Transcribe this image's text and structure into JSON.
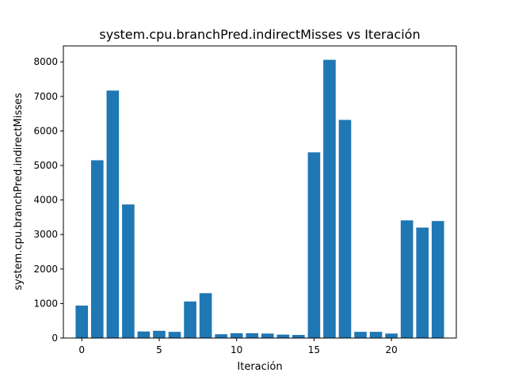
{
  "chart_data": {
    "type": "bar",
    "title": "system.cpu.branchPred.indirectMisses vs Iteración",
    "xlabel": "Iteración",
    "ylabel": "system.cpu.branchPred.indirectMisses",
    "x": [
      0,
      1,
      2,
      3,
      4,
      5,
      6,
      7,
      8,
      9,
      10,
      11,
      12,
      13,
      14,
      15,
      16,
      17,
      18,
      19,
      20,
      21,
      22,
      23
    ],
    "values": [
      940,
      5150,
      7170,
      3870,
      190,
      210,
      180,
      1060,
      1300,
      110,
      140,
      140,
      130,
      100,
      90,
      5380,
      8060,
      6320,
      180,
      180,
      130,
      3410,
      3200,
      3390
    ],
    "xlim": [
      -1.19,
      24.19
    ],
    "ylim": [
      0,
      8463
    ],
    "xticks": [
      "0",
      "5",
      "10",
      "15",
      "20"
    ],
    "yticks": [
      "0",
      "1000",
      "2000",
      "3000",
      "4000",
      "5000",
      "6000",
      "7000",
      "8000"
    ],
    "bar_color": "#1f77b4",
    "grid": false,
    "legend": "none"
  }
}
